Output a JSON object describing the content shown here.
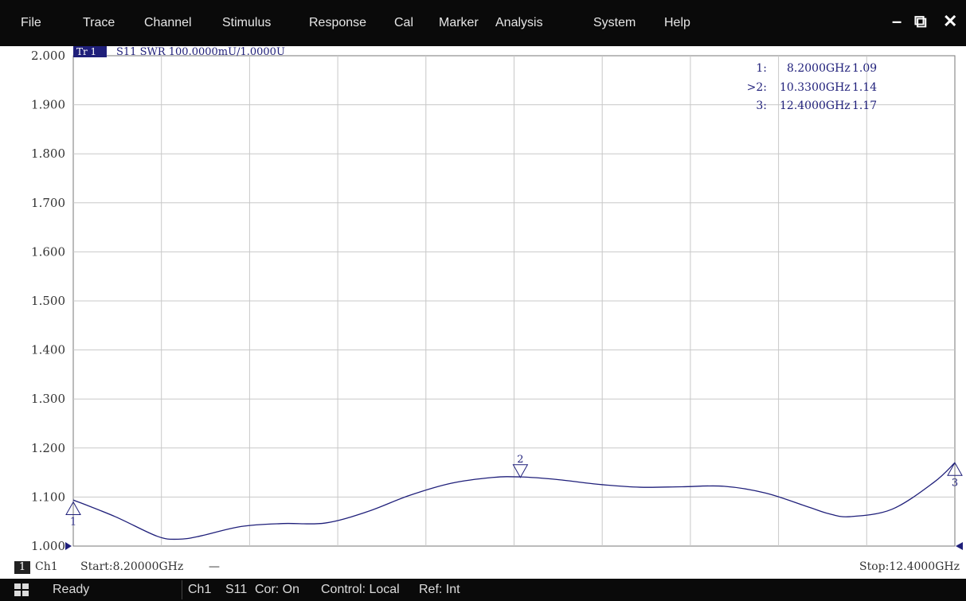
{
  "menu": [
    "File",
    "Trace",
    "Channel",
    "Stimulus",
    "Response",
    "Cal",
    "Marker",
    "Analysis",
    "System",
    "Help"
  ],
  "window_controls": {
    "minimize": "–",
    "restore": "⧉",
    "close": "✕"
  },
  "trace": {
    "tag": "Tr 1",
    "info": "S11 SWR 100.0000mU/1.0000U",
    "color": "#1f1f7a"
  },
  "markers": [
    {
      "id": "1:",
      "freq": "8.2000GHz",
      "value": "1.09",
      "label": "1"
    },
    {
      "id": ">2:",
      "freq": "10.3300GHz",
      "value": "1.14",
      "label": "2"
    },
    {
      "id": "3:",
      "freq": "12.4000GHz",
      "value": "1.17",
      "label": "3"
    }
  ],
  "chart_data": {
    "type": "line",
    "title": "",
    "xlabel": "",
    "ylabel": "",
    "xlim": [
      8.2,
      12.4
    ],
    "ylim": [
      1.0,
      2.0
    ],
    "grid": true,
    "yticks": [
      "2.000",
      "1.900",
      "1.800",
      "1.700",
      "1.600",
      "1.500",
      "1.400",
      "1.300",
      "1.200",
      "1.100",
      "1.000"
    ],
    "series": [
      {
        "x": [
          8.2,
          8.4,
          8.6,
          8.7,
          8.8,
          9.0,
          9.2,
          9.4,
          9.6,
          9.8,
          10.0,
          10.2,
          10.33,
          10.5,
          10.7,
          10.9,
          11.1,
          11.3,
          11.5,
          11.7,
          11.8,
          11.9,
          12.1,
          12.3,
          12.4
        ],
        "y": [
          1.094,
          1.06,
          1.02,
          1.014,
          1.02,
          1.04,
          1.046,
          1.047,
          1.07,
          1.103,
          1.128,
          1.14,
          1.141,
          1.136,
          1.126,
          1.12,
          1.121,
          1.122,
          1.108,
          1.08,
          1.066,
          1.06,
          1.075,
          1.13,
          1.17
        ]
      }
    ],
    "marker_points": [
      {
        "x": 8.2,
        "y": 1.09
      },
      {
        "x": 10.33,
        "y": 1.14
      },
      {
        "x": 12.4,
        "y": 1.17
      }
    ]
  },
  "channel_footer": {
    "channel_num": "1",
    "channel": "Ch1",
    "start": "Start:8.20000GHz",
    "dash": "—",
    "stop": "Stop:12.4000GHz"
  },
  "status": {
    "ready": "Ready",
    "channel": "Ch1",
    "param": "S11",
    "cor": "Cor: On",
    "control": "Control: Local",
    "ref": "Ref: Int"
  }
}
